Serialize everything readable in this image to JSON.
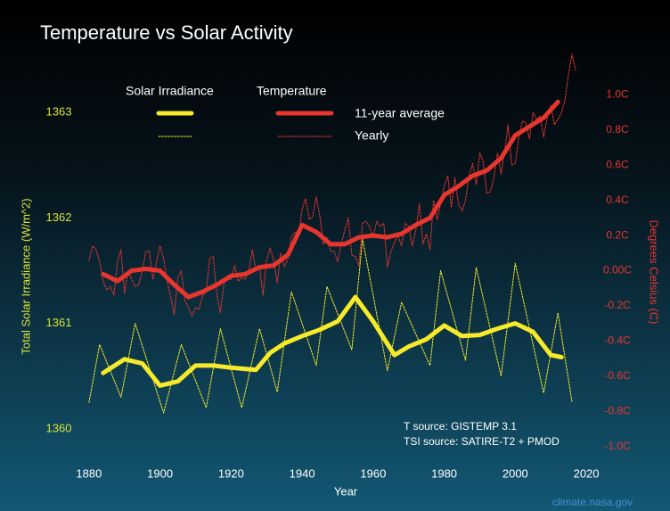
{
  "chart_data": {
    "type": "line",
    "title": "Temperature vs Solar Activity",
    "x_label": "Year",
    "y_label": "Total Solar Irradiance (W/m^2)",
    "y2_label": "Degrees Celsius (C)",
    "annotations": [
      "T source: GISTEMP 3.1",
      "TSI source: SATIRE-T2 + PMOD",
      "climate.nasa.gov"
    ],
    "xlim": [
      1870,
      2025
    ],
    "xticks": [
      1880,
      1900,
      1920,
      1940,
      1960,
      1980,
      2000,
      2020
    ],
    "ylim": [
      1359.5,
      1363.5
    ],
    "yticks": [
      1360,
      1361,
      1362,
      1363
    ],
    "y2lim": [
      -1.2,
      1.2
    ],
    "y2ticks": [
      {
        "value": -1.0,
        "label": "-1.0C"
      },
      {
        "value": -0.8,
        "label": "-0.8C"
      },
      {
        "value": -0.6,
        "label": "-0.6C"
      },
      {
        "value": -0.4,
        "label": "-0.4C"
      },
      {
        "value": -0.2,
        "label": "-0.2C"
      },
      {
        "value": 0.0,
        "label": "0.00C"
      },
      {
        "value": 0.2,
        "label": "0.2C"
      },
      {
        "value": 0.4,
        "label": "0.4C"
      },
      {
        "value": 0.6,
        "label": "0.6C"
      },
      {
        "value": 0.8,
        "label": "0.8C"
      },
      {
        "value": 1.0,
        "label": "1.0C"
      }
    ],
    "y_tick_color": "#d6e23a",
    "y2_tick_color": "#e8352e",
    "series": [
      {
        "name": "11-year average",
        "group": "Solar Irradiance",
        "color": "#f6ea2a",
        "style": "solid",
        "x": [
          1884,
          1890,
          1895,
          1900,
          1905,
          1910,
          1915,
          1920,
          1927,
          1931,
          1935,
          1940,
          1945,
          1950,
          1955,
          1960,
          1966,
          1970,
          1975,
          1980,
          1985,
          1990,
          1995,
          2000,
          2005,
          2010,
          2013
        ],
        "values": [
          1360.53,
          1360.66,
          1360.62,
          1360.41,
          1360.45,
          1360.6,
          1360.6,
          1360.58,
          1360.56,
          1360.72,
          1360.81,
          1360.88,
          1360.94,
          1361.02,
          1361.25,
          1361.02,
          1360.7,
          1360.78,
          1360.85,
          1360.98,
          1360.88,
          1360.89,
          1360.95,
          1361.0,
          1360.92,
          1360.7,
          1360.68
        ]
      },
      {
        "name": "11-year average",
        "group": "Temperature",
        "color": "#e8352e",
        "style": "solid",
        "axis": "y2",
        "x": [
          1884,
          1888,
          1892,
          1896,
          1900,
          1904,
          1908,
          1912,
          1916,
          1920,
          1924,
          1928,
          1932,
          1936,
          1940,
          1944,
          1948,
          1952,
          1956,
          1960,
          1964,
          1968,
          1972,
          1976,
          1980,
          1984,
          1988,
          1992,
          1996,
          2000,
          2004,
          2008,
          2012
        ],
        "values": [
          -0.02,
          -0.06,
          0.0,
          0.01,
          0.0,
          -0.08,
          -0.15,
          -0.12,
          -0.08,
          -0.03,
          -0.02,
          0.02,
          0.03,
          0.09,
          0.26,
          0.22,
          0.15,
          0.15,
          0.19,
          0.2,
          0.19,
          0.21,
          0.26,
          0.3,
          0.43,
          0.48,
          0.54,
          0.57,
          0.64,
          0.77,
          0.82,
          0.87,
          0.96
        ]
      },
      {
        "name": "Yearly",
        "group": "Solar Irradiance",
        "color": "#f6ea2a",
        "style": "dotted",
        "x": [
          1880,
          1883,
          1889,
          1893,
          1901,
          1906,
          1913,
          1917,
          1923,
          1928,
          1933,
          1937,
          1944,
          1947,
          1954,
          1957,
          1964,
          1968,
          1976,
          1979,
          1986,
          1989,
          1996,
          2000,
          2008,
          2012,
          2016
        ],
        "values": [
          1360.25,
          1360.8,
          1360.3,
          1361.0,
          1360.15,
          1360.8,
          1360.2,
          1360.95,
          1360.2,
          1360.95,
          1360.35,
          1361.3,
          1360.6,
          1361.35,
          1360.75,
          1361.8,
          1360.55,
          1361.2,
          1360.6,
          1361.5,
          1360.65,
          1361.53,
          1360.5,
          1361.57,
          1360.34,
          1361.1,
          1360.25
        ]
      },
      {
        "name": "Yearly",
        "group": "Temperature",
        "color": "#e8352e",
        "style": "dotted",
        "axis": "y2",
        "x": [
          1880,
          1881,
          1882,
          1883,
          1884,
          1885,
          1886,
          1887,
          1888,
          1889,
          1890,
          1891,
          1892,
          1893,
          1894,
          1895,
          1896,
          1897,
          1898,
          1899,
          1900,
          1901,
          1902,
          1903,
          1904,
          1905,
          1906,
          1907,
          1908,
          1909,
          1910,
          1911,
          1912,
          1913,
          1914,
          1915,
          1916,
          1917,
          1918,
          1919,
          1920,
          1921,
          1922,
          1923,
          1924,
          1925,
          1926,
          1927,
          1928,
          1929,
          1930,
          1931,
          1932,
          1933,
          1934,
          1935,
          1936,
          1937,
          1938,
          1939,
          1940,
          1941,
          1942,
          1943,
          1944,
          1945,
          1946,
          1947,
          1948,
          1949,
          1950,
          1951,
          1952,
          1953,
          1954,
          1955,
          1956,
          1957,
          1958,
          1959,
          1960,
          1961,
          1962,
          1963,
          1964,
          1965,
          1966,
          1967,
          1968,
          1969,
          1970,
          1971,
          1972,
          1973,
          1974,
          1975,
          1976,
          1977,
          1978,
          1979,
          1980,
          1981,
          1982,
          1983,
          1984,
          1985,
          1986,
          1987,
          1988,
          1989,
          1990,
          1991,
          1992,
          1993,
          1994,
          1995,
          1996,
          1997,
          1998,
          1999,
          2000,
          2001,
          2002,
          2003,
          2004,
          2005,
          2006,
          2007,
          2008,
          2009,
          2010,
          2011,
          2012,
          2013,
          2014,
          2015,
          2016,
          2017
        ],
        "values": [
          0.06,
          0.14,
          0.12,
          0.05,
          -0.06,
          -0.11,
          -0.09,
          -0.14,
          0.05,
          0.12,
          -0.13,
          0.0,
          -0.05,
          -0.09,
          -0.08,
          0.0,
          0.11,
          0.11,
          -0.05,
          0.05,
          0.14,
          0.07,
          -0.06,
          -0.15,
          -0.25,
          -0.04,
          0.0,
          -0.17,
          -0.21,
          -0.26,
          -0.21,
          -0.22,
          -0.14,
          -0.12,
          0.07,
          0.08,
          -0.14,
          -0.24,
          -0.07,
          -0.05,
          -0.05,
          0.03,
          -0.06,
          -0.04,
          -0.05,
          0.0,
          0.12,
          0.0,
          0.02,
          -0.14,
          0.06,
          0.13,
          0.06,
          -0.07,
          0.1,
          0.02,
          0.07,
          0.19,
          0.22,
          0.2,
          0.35,
          0.41,
          0.29,
          0.31,
          0.42,
          0.31,
          0.15,
          0.19,
          0.11,
          0.11,
          0.05,
          0.15,
          0.23,
          0.3,
          0.09,
          0.08,
          0.03,
          0.27,
          0.28,
          0.25,
          0.19,
          0.28,
          0.25,
          0.27,
          0.02,
          0.11,
          0.16,
          0.2,
          0.14,
          0.27,
          0.25,
          0.14,
          0.23,
          0.38,
          0.15,
          0.21,
          0.12,
          0.4,
          0.29,
          0.38,
          0.48,
          0.54,
          0.36,
          0.53,
          0.38,
          0.34,
          0.4,
          0.54,
          0.61,
          0.49,
          0.67,
          0.62,
          0.44,
          0.45,
          0.53,
          0.67,
          0.55,
          0.68,
          0.83,
          0.6,
          0.61,
          0.76,
          0.85,
          0.84,
          0.75,
          0.9,
          0.86,
          0.88,
          0.76,
          0.87,
          0.94,
          0.83,
          0.86,
          0.9,
          0.97,
          1.12,
          1.23,
          1.14
        ]
      }
    ]
  }
}
